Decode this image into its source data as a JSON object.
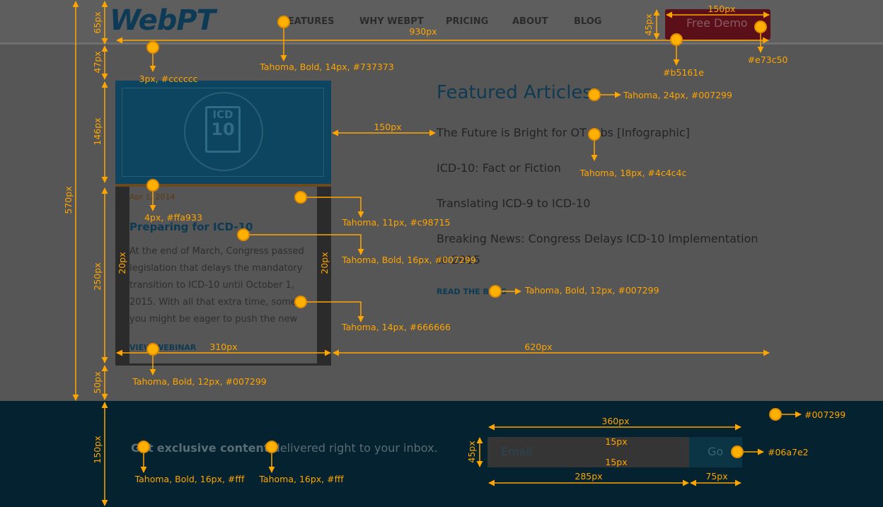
{
  "header": {
    "logo": "WebPT",
    "nav": [
      "FEATURES",
      "WHY WEBPT",
      "PRICING",
      "ABOUT",
      "BLOG"
    ],
    "button": "Free Demo"
  },
  "card": {
    "image_top": "ICD",
    "image_bottom": "10",
    "date": "Apr 1, 2014",
    "title": "Preparing for ICD-10",
    "body": "At the end of March, Congress passed legislation that delays the mandatory transition to ICD-10 until October 1, 2015. With all that extra time, some you might be eager to push the new",
    "link": "VIEW WEBINAR"
  },
  "featured": {
    "title": "Featured Articles",
    "articles": [
      "The Future is Bright for OT Jobs [Infographic]",
      "ICD-10: Fact or Fiction",
      "Translating ICD-9 to ICD-10",
      "Breaking News: Congress Delays ICD-10 Implementation to 2015"
    ],
    "link": "READ THE BLOG"
  },
  "footer": {
    "text": [
      "Get",
      "exclusive content",
      "delivered right to your inbox."
    ],
    "email": "Email",
    "button": "Go"
  },
  "annotations": [
    "65px",
    "930px",
    "3px, #cccccc",
    "Tahoma, Bold, 14px, #737373",
    "150px",
    "45px",
    "#b5161e",
    "#e73c50",
    "47px",
    "570px",
    "146px",
    "150px",
    "Tahoma, 24px, #007299",
    "Tahoma, 18px, #4c4c4c",
    "4px, #ffa933",
    "Tahoma, 11px, #c98715",
    "Tahoma, Bold, 16px, #007299",
    "250px",
    "20px",
    "20px",
    "Tahoma, 14px, #666666",
    "Tahoma, Bold, 12px, #007299",
    "310px",
    "620px",
    "Tahoma, Bold, 12px, #007299",
    "50px",
    "150px",
    "#007299",
    "360px",
    "15px",
    "45px",
    "15px",
    "#06a7e2",
    "285px",
    "75px",
    "Tahoma, Bold, 16px, #fff",
    "Tahoma, 16px, #fff"
  ]
}
